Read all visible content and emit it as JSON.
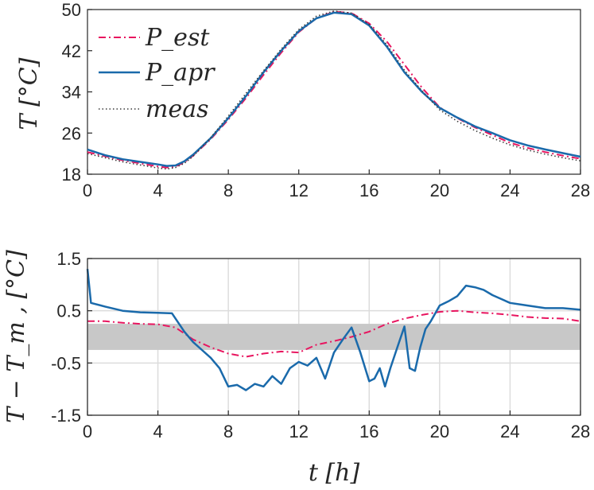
{
  "chart_data": [
    {
      "type": "line",
      "xlim": [
        0,
        28
      ],
      "ylim": [
        18,
        50
      ],
      "xticks": [
        "0",
        "4",
        "8",
        "12",
        "16",
        "20",
        "24",
        "28"
      ],
      "yticks": [
        "18",
        "26",
        "34",
        "42",
        "50"
      ],
      "ylabel": "T [°C]",
      "legend": {
        "placement": "top-left",
        "entries": [
          "P_est",
          "P_apr",
          "meas"
        ]
      },
      "grid": false,
      "series": [
        {
          "name": "P_est",
          "color": "#e8155f",
          "style": "dashdot",
          "x": [
            0,
            1,
            2,
            3,
            4,
            4.5,
            5,
            5.5,
            6,
            7,
            8,
            9,
            10,
            11,
            12,
            13,
            14,
            15,
            16,
            17,
            18,
            19,
            20,
            21,
            22,
            23,
            24,
            25,
            26,
            27,
            28
          ],
          "y": [
            22.3,
            21.5,
            20.7,
            20.1,
            19.5,
            19.3,
            19.5,
            20.3,
            21.6,
            24.8,
            28.6,
            32.8,
            37.3,
            41.6,
            45.6,
            48.3,
            49.6,
            49.3,
            47.3,
            43.8,
            39.3,
            34.8,
            31.0,
            28.9,
            27.1,
            25.6,
            24.1,
            23.1,
            22.3,
            21.6,
            21.0
          ]
        },
        {
          "name": "P_apr",
          "color": "#1a6aab",
          "style": "solid",
          "x": [
            0,
            1,
            2,
            3,
            4,
            4.5,
            5,
            5.5,
            6,
            7,
            8,
            9,
            10,
            11,
            12,
            13,
            14,
            15,
            16,
            17,
            18,
            19,
            20,
            21,
            22,
            23,
            24,
            25,
            26,
            27,
            28
          ],
          "y": [
            22.8,
            21.7,
            20.9,
            20.4,
            19.9,
            19.6,
            19.7,
            20.5,
            21.8,
            25.0,
            28.9,
            33.2,
            37.8,
            42.0,
            45.8,
            48.3,
            49.4,
            49.1,
            46.9,
            42.8,
            37.8,
            34.0,
            30.9,
            29.0,
            27.3,
            26.0,
            24.6,
            23.6,
            22.8,
            22.1,
            21.4
          ]
        },
        {
          "name": "meas",
          "color": "#3a3a3a",
          "style": "dotted",
          "x": [
            0,
            1,
            2,
            3,
            4,
            4.5,
            5,
            5.5,
            6,
            7,
            8,
            9,
            10,
            11,
            12,
            13,
            14,
            15,
            16,
            17,
            18,
            19,
            20,
            21,
            22,
            23,
            24,
            25,
            26,
            27,
            28
          ],
          "y": [
            22.0,
            21.2,
            20.4,
            19.8,
            19.2,
            19.0,
            19.3,
            20.1,
            21.5,
            25.1,
            29.3,
            33.7,
            38.1,
            42.3,
            46.1,
            48.7,
            49.7,
            49.3,
            47.1,
            43.2,
            38.2,
            34.2,
            30.5,
            28.3,
            26.5,
            25.0,
            23.7,
            22.7,
            21.9,
            21.2,
            20.6
          ]
        }
      ]
    },
    {
      "type": "line",
      "xlim": [
        0,
        28
      ],
      "ylim": [
        -1.5,
        1.5
      ],
      "xticks": [
        "0",
        "4",
        "8",
        "12",
        "16",
        "20",
        "24",
        "28"
      ],
      "yticks": [
        "-1.5",
        "-0.5",
        "0.5",
        "1.5"
      ],
      "xlabel": "t [h]",
      "ylabel": "T − T_m ,  [°C]",
      "grid": true,
      "band": [
        -0.25,
        0.25
      ],
      "series": [
        {
          "name": "P_est",
          "color": "#e8155f",
          "style": "dashdot",
          "x": [
            0,
            1,
            2,
            3,
            4,
            5,
            6,
            7,
            8,
            9,
            10,
            11,
            12,
            13,
            14,
            15,
            16,
            17,
            18,
            19,
            20,
            21,
            22,
            23,
            24,
            25,
            26,
            27,
            28
          ],
          "y": [
            0.3,
            0.3,
            0.27,
            0.25,
            0.24,
            0.18,
            -0.05,
            -0.2,
            -0.32,
            -0.38,
            -0.32,
            -0.28,
            -0.3,
            -0.15,
            -0.08,
            0.0,
            0.1,
            0.25,
            0.35,
            0.42,
            0.48,
            0.5,
            0.47,
            0.45,
            0.42,
            0.38,
            0.36,
            0.35,
            0.3
          ]
        },
        {
          "name": "P_apr",
          "color": "#1a6aab",
          "style": "solid",
          "x": [
            0,
            0.2,
            1,
            2,
            3,
            4,
            4.8,
            5.5,
            6,
            7,
            7.5,
            8,
            8.5,
            9,
            9.5,
            10,
            10.5,
            11,
            11.5,
            12,
            12.5,
            13,
            13.5,
            14,
            14.5,
            15,
            15.5,
            16,
            16.3,
            16.6,
            16.9,
            17.2,
            17.6,
            18,
            18.3,
            18.6,
            18.9,
            19.2,
            19.5,
            20,
            20.5,
            21,
            21.5,
            22,
            22.5,
            23,
            24,
            25,
            26,
            27,
            28
          ],
          "y": [
            1.3,
            0.65,
            0.58,
            0.5,
            0.47,
            0.46,
            0.45,
            0.1,
            -0.1,
            -0.4,
            -0.6,
            -0.95,
            -0.92,
            -1.02,
            -0.9,
            -0.95,
            -0.75,
            -0.9,
            -0.6,
            -0.48,
            -0.55,
            -0.4,
            -0.8,
            -0.3,
            -0.05,
            0.18,
            -0.3,
            -0.85,
            -0.8,
            -0.6,
            -0.95,
            -0.6,
            -0.2,
            0.2,
            -0.6,
            -0.65,
            -0.2,
            0.15,
            0.3,
            0.6,
            0.68,
            0.78,
            0.98,
            0.95,
            0.9,
            0.8,
            0.65,
            0.6,
            0.55,
            0.55,
            0.52
          ]
        }
      ]
    }
  ]
}
